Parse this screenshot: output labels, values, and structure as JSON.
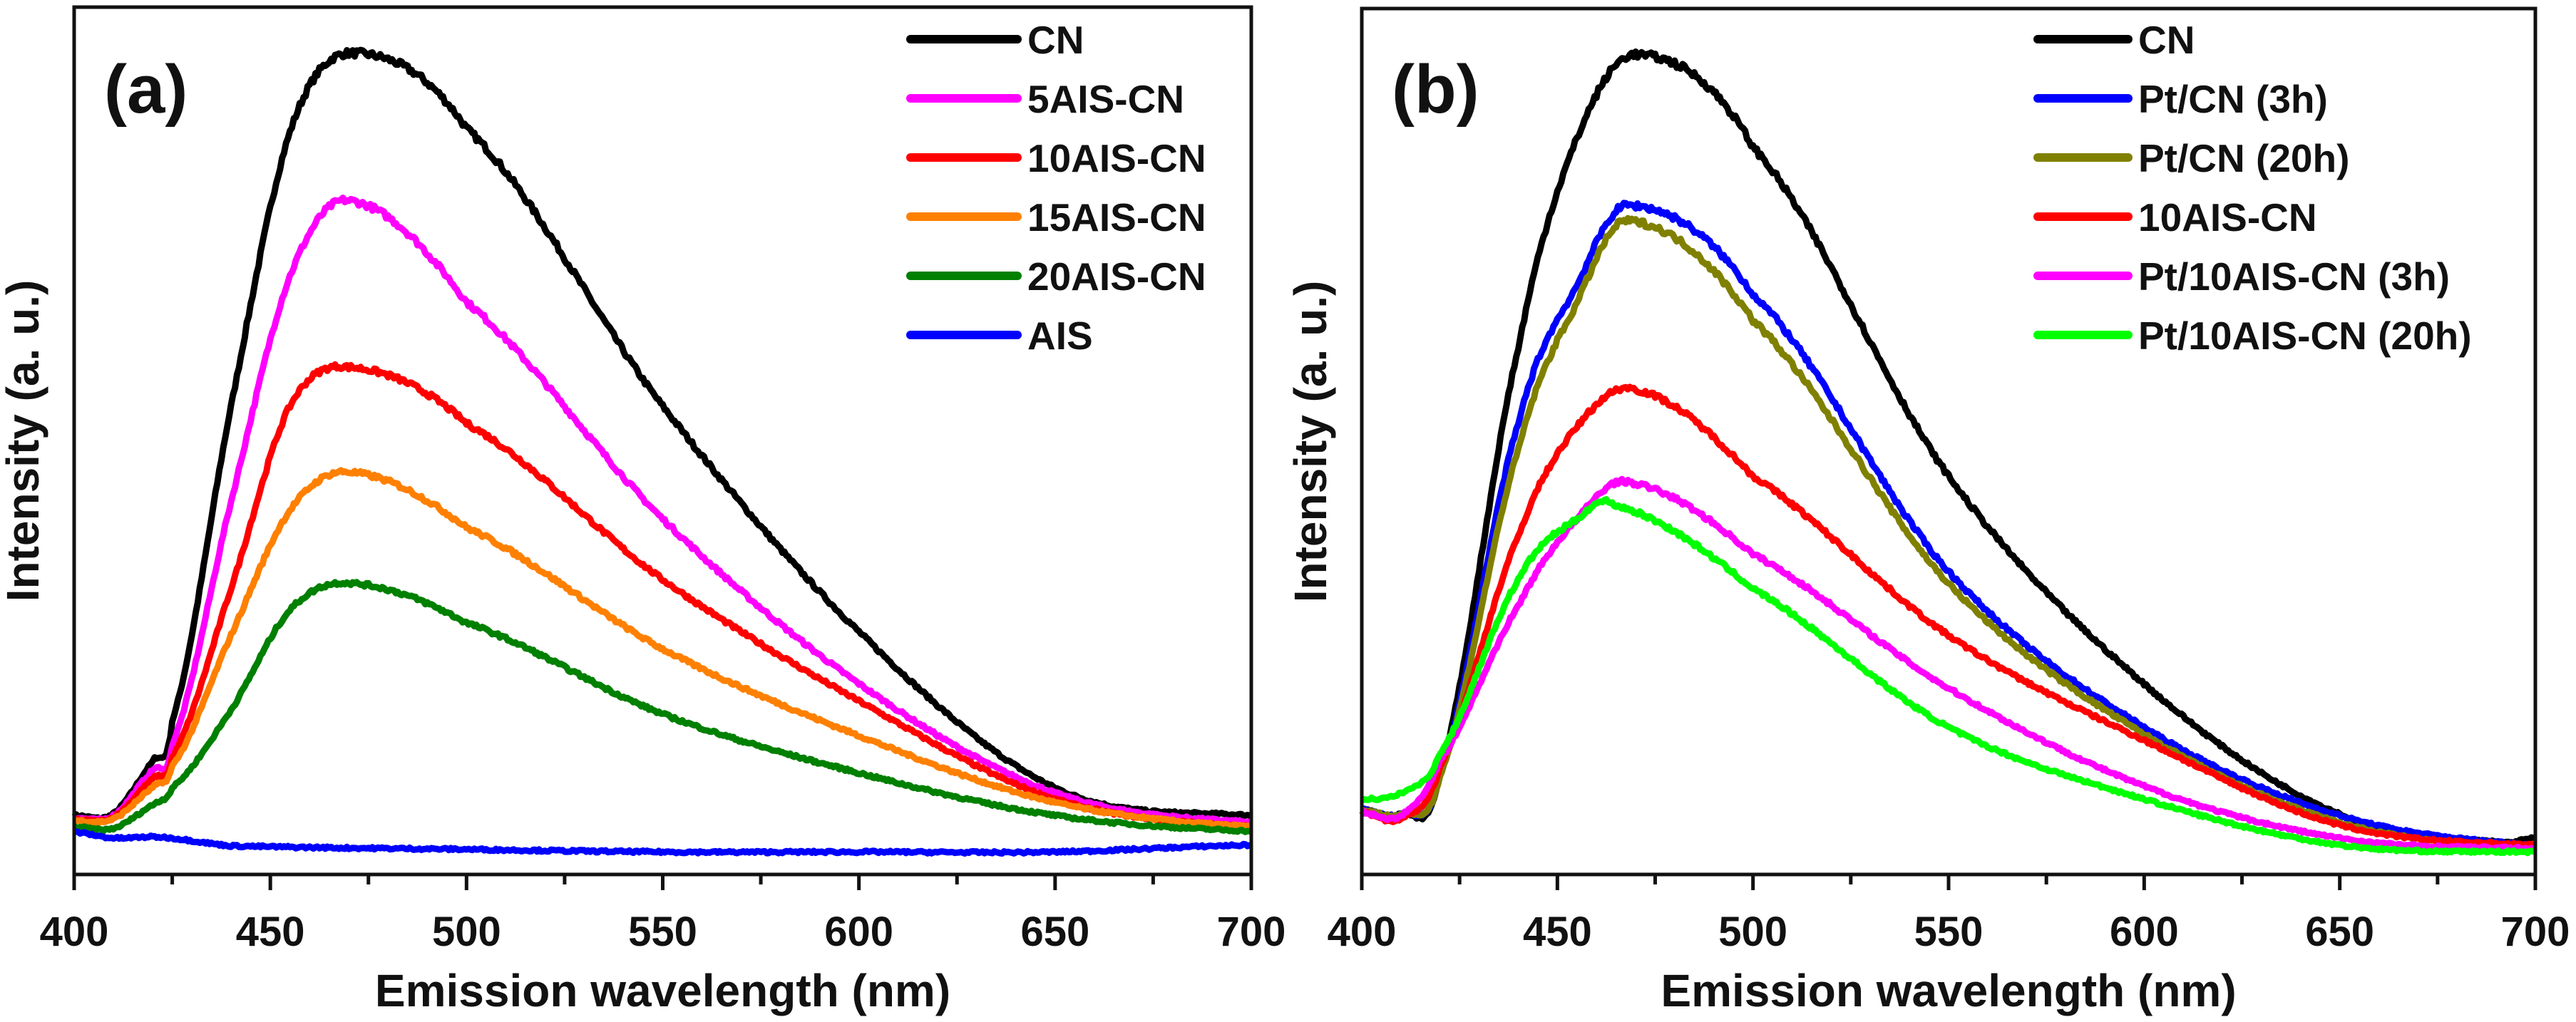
{
  "chart_data": [
    {
      "type": "line",
      "panel_label": "(a)",
      "xlabel": "Emission wavelength (nm)",
      "ylabel": "Intensity (a. u.)",
      "xlim": [
        400,
        700
      ],
      "ylim": [
        0,
        100
      ],
      "xticks": [
        400,
        450,
        500,
        550,
        600,
        650,
        700
      ],
      "legend_position": "top-right",
      "grid": false,
      "series": [
        {
          "name": "CN",
          "color": "#000000",
          "x": [
            400,
            410,
            420,
            425,
            440,
            455,
            470,
            500,
            550,
            600,
            650,
            700
          ],
          "y": [
            6.8,
            7.0,
            13,
            17.7,
            54,
            85.6,
            94.7,
            86,
            54,
            28,
            10,
            6.8
          ]
        },
        {
          "name": "5AIS-CN",
          "color": "#ff00ff",
          "x": [
            400,
            410,
            420,
            425,
            440,
            455,
            470,
            500,
            550,
            600,
            650,
            700
          ],
          "y": [
            6.5,
            6.8,
            12,
            15,
            43,
            69,
            77.7,
            66,
            41,
            22,
            9.4,
            6
          ]
        },
        {
          "name": "10AIS-CN",
          "color": "#ff0000",
          "x": [
            400,
            410,
            420,
            425,
            440,
            455,
            470,
            500,
            550,
            600,
            650,
            700
          ],
          "y": [
            6.3,
            6.6,
            11,
            13.5,
            33,
            54,
            58.5,
            52,
            34,
            20,
            8.7,
            5.5
          ]
        },
        {
          "name": "15AIS-CN",
          "color": "#ff8000",
          "x": [
            400,
            410,
            420,
            425,
            440,
            455,
            470,
            500,
            550,
            600,
            650,
            700
          ],
          "y": [
            6.2,
            6.4,
            10,
            12.5,
            27.6,
            42,
            46.4,
            40,
            26,
            16,
            8.3,
            5.5
          ]
        },
        {
          "name": "20AIS-CN",
          "color": "#008000",
          "x": [
            400,
            410,
            420,
            425,
            440,
            455,
            470,
            500,
            550,
            600,
            650,
            700
          ],
          "y": [
            5.5,
            5.3,
            8,
            10,
            19,
            30.5,
            33.6,
            29,
            18.5,
            11.7,
            6.8,
            5
          ]
        },
        {
          "name": "AIS",
          "color": "#0000ff",
          "x": [
            400,
            410,
            422,
            440,
            500,
            550,
            600,
            650,
            700
          ],
          "y": [
            4.9,
            4.2,
            4.3,
            3.3,
            2.9,
            2.6,
            2.6,
            2.6,
            3.4
          ]
        }
      ]
    },
    {
      "type": "line",
      "panel_label": "(b)",
      "xlabel": "Emission wavelength (nm)",
      "ylabel": "Intensity (a. u.)",
      "xlim": [
        400,
        700
      ],
      "ylim": [
        0,
        100
      ],
      "xticks": [
        400,
        450,
        500,
        550,
        600,
        650,
        700
      ],
      "legend_position": "top-right",
      "grid": false,
      "series": [
        {
          "name": "CN",
          "color": "#000000",
          "x": [
            400,
            410,
            420,
            440,
            455,
            470,
            500,
            550,
            600,
            650,
            690,
            700
          ],
          "y": [
            7.5,
            7.0,
            12,
            60.7,
            85,
            94.7,
            84,
            46,
            22,
            7,
            3.8,
            4.2
          ]
        },
        {
          "name": "Pt/CN (3h)",
          "color": "#0000ff",
          "x": [
            400,
            410,
            420,
            440,
            455,
            468,
            500,
            550,
            600,
            650,
            700
          ],
          "y": [
            7.5,
            7.0,
            11.7,
            52,
            68,
            77.3,
            67,
            35,
            17,
            6.8,
            3.4
          ]
        },
        {
          "name": "Pt/CN (20h)",
          "color": "#808000",
          "x": [
            400,
            410,
            420,
            440,
            455,
            468,
            500,
            550,
            600,
            650,
            700
          ],
          "y": [
            7.5,
            7.0,
            11.5,
            49,
            66,
            75.5,
            64,
            33.6,
            16.2,
            6,
            3
          ]
        },
        {
          "name": "10AIS-CN",
          "color": "#ff0000",
          "x": [
            400,
            410,
            420,
            440,
            455,
            470,
            500,
            550,
            600,
            650,
            700
          ],
          "y": [
            7.2,
            6.4,
            12.5,
            39,
            51.7,
            56,
            46,
            27.6,
            15.5,
            5.7,
            3.4
          ]
        },
        {
          "name": "Pt/10AIS-CN (3h)",
          "color": "#ff00ff",
          "x": [
            400,
            410,
            420,
            440,
            455,
            468,
            500,
            550,
            600,
            650,
            700
          ],
          "y": [
            7.2,
            6.8,
            13.2,
            31,
            41,
            45.3,
            37,
            21.5,
            10.2,
            4.2,
            3
          ]
        },
        {
          "name": "Pt/10AIS-CN (20h)",
          "color": "#00ff00",
          "x": [
            400,
            410,
            420,
            440,
            455,
            465,
            500,
            550,
            600,
            650,
            700
          ],
          "y": [
            8.7,
            9.4,
            14,
            34,
            41,
            42.6,
            33,
            17,
            8.7,
            3.4,
            2.6
          ]
        }
      ]
    }
  ]
}
